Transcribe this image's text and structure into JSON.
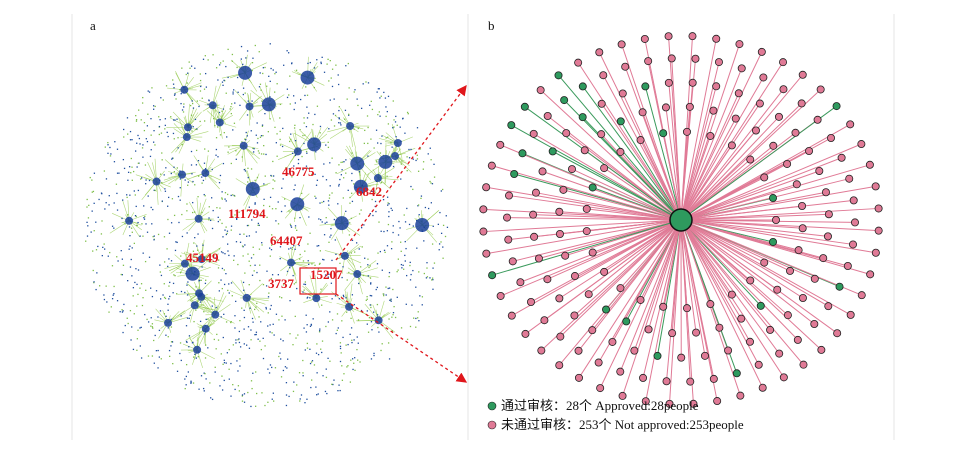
{
  "panels": {
    "a": {
      "label": "a",
      "node_labels": [
        "46775",
        "6842",
        "111794",
        "64407",
        "45149",
        "3737",
        "15207"
      ]
    },
    "b": {
      "label": "b",
      "legend": [
        {
          "text": "通过审核：28个 Approved:28people",
          "color": "#2e9a5e"
        },
        {
          "text": "未通过审核：253个 Not approved:253people",
          "color": "#e07a96"
        }
      ]
    }
  }
}
